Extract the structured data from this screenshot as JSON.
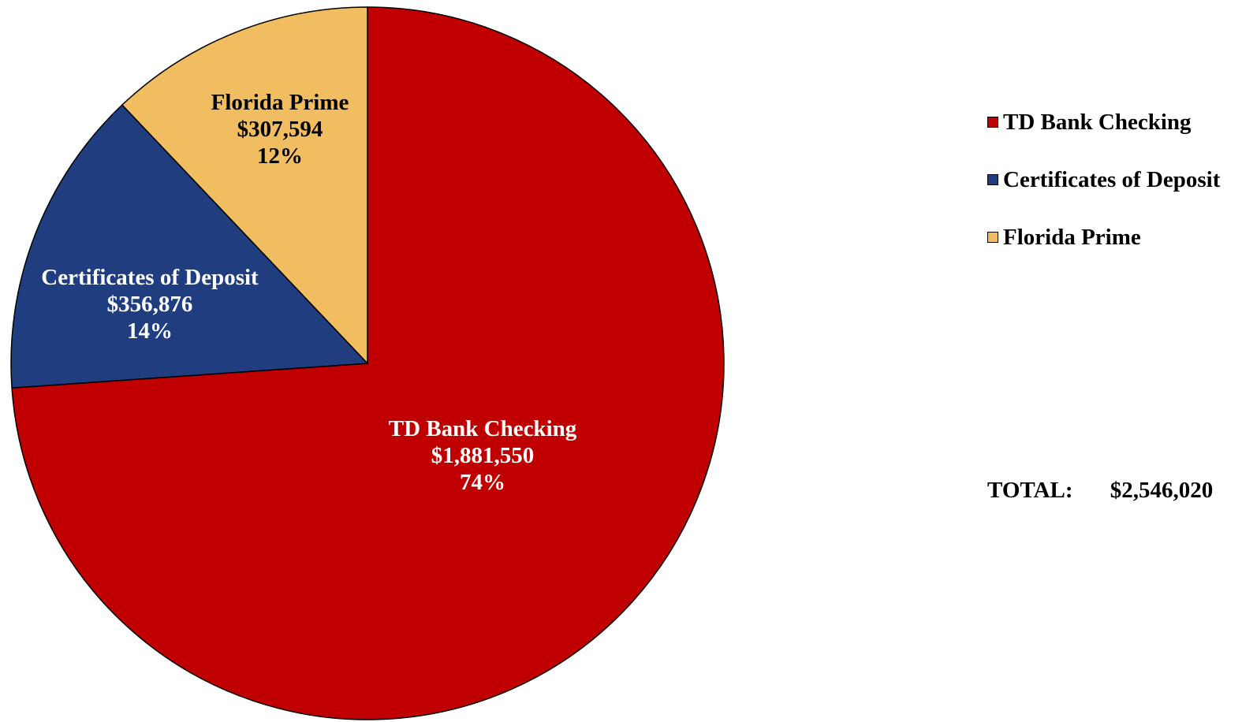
{
  "chart_data": {
    "type": "pie",
    "title": "",
    "start_angle_deg": 0,
    "direction": "clockwise",
    "slices": [
      {
        "name": "TD Bank Checking",
        "value": 1881550,
        "value_label": "$1,881,550",
        "percent_label": "74%",
        "color": "#C00000",
        "label_color": "#FFFFFF"
      },
      {
        "name": "Certificates of Deposit",
        "value": 356876,
        "value_label": "$356,876",
        "percent_label": "14%",
        "color": "#1F3D7F",
        "label_color": "#FFFFFF"
      },
      {
        "name": "Florida Prime",
        "value": 307594,
        "value_label": "$307,594",
        "percent_label": "12%",
        "color": "#F0BE60",
        "label_color": "#000000"
      }
    ],
    "legend": {
      "position": "right",
      "items": [
        "TD Bank Checking",
        "Certificates of Deposit",
        "Florida Prime"
      ]
    },
    "total": {
      "label": "TOTAL:",
      "value": "$2,546,020"
    }
  }
}
